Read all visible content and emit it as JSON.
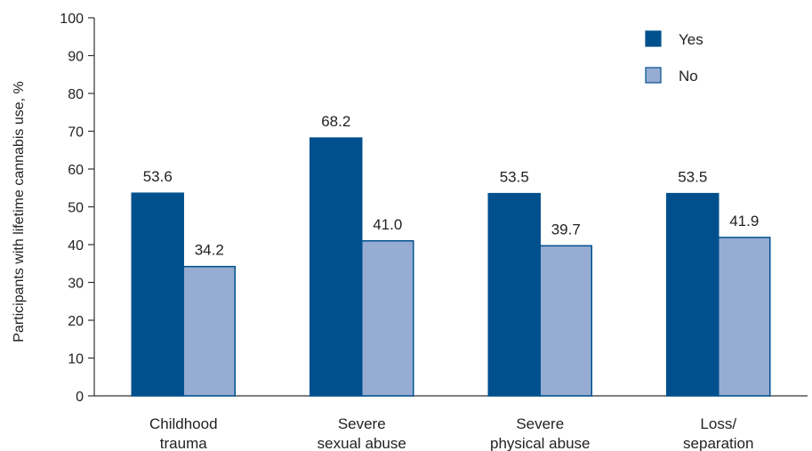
{
  "chart_data": {
    "type": "bar",
    "categories": [
      [
        "Childhood",
        "trauma"
      ],
      [
        "Severe",
        "sexual abuse"
      ],
      [
        "Severe",
        "physical abuse"
      ],
      [
        "Loss/",
        "separation"
      ]
    ],
    "series": [
      {
        "name": "Yes",
        "values": [
          53.6,
          68.2,
          53.5,
          53.5
        ],
        "labels": [
          "53.6",
          "68.2",
          "53.5",
          "53.5"
        ],
        "color": "#00508e"
      },
      {
        "name": "No",
        "values": [
          34.2,
          41.0,
          39.7,
          41.9
        ],
        "labels": [
          "34.2",
          "41.0",
          "39.7",
          "41.9"
        ],
        "color": "#96acd2"
      }
    ],
    "ylabel": "Participants with lifetime cannabis use, %",
    "xlabel": "",
    "ylim": [
      0,
      100
    ],
    "yticks": [
      "0",
      "10",
      "20",
      "30",
      "40",
      "50",
      "60",
      "70",
      "80",
      "90",
      "100"
    ],
    "grid": false,
    "legend": "top-right",
    "bar_border_color": "#00508e",
    "axis_color": "#333333"
  }
}
